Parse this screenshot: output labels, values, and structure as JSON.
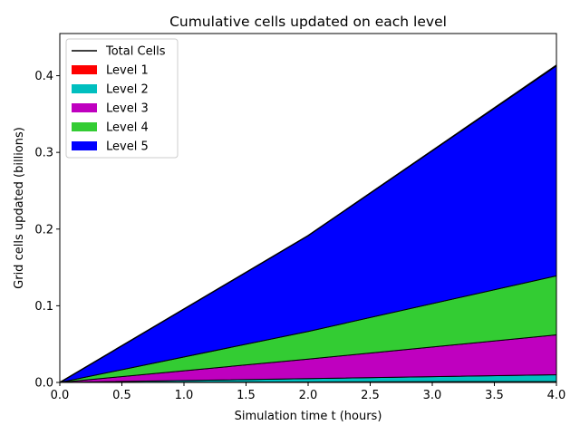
{
  "chart_data": {
    "type": "area",
    "stacked": true,
    "title": "Cumulative cells updated on each level",
    "xlabel": "Simulation time t (hours)",
    "ylabel": "Grid cells updated (billions)",
    "xlim": [
      0,
      4
    ],
    "ylim": [
      0,
      0.455
    ],
    "xticks": [
      0,
      0.5,
      1,
      1.5,
      2,
      2.5,
      3,
      3.5,
      4
    ],
    "xtick_labels": [
      "0.0",
      "0.5",
      "1.0",
      "1.5",
      "2.0",
      "2.5",
      "3.0",
      "3.5",
      "4.0"
    ],
    "yticks": [
      0,
      0.1,
      0.2,
      0.3,
      0.4
    ],
    "ytick_labels": [
      "0.0",
      "0.1",
      "0.2",
      "0.3",
      "0.4"
    ],
    "grid": false,
    "legend_position": "top-left",
    "x": [
      0,
      2,
      4
    ],
    "series": [
      {
        "name": "Level 1",
        "color": "#ff0000",
        "values": [
          0,
          0.0006,
          0.0012
        ]
      },
      {
        "name": "Level 2",
        "color": "#00bfbf",
        "values": [
          0,
          0.0044,
          0.0088
        ]
      },
      {
        "name": "Level 3",
        "color": "#bf00bf",
        "values": [
          0,
          0.0255,
          0.052
        ]
      },
      {
        "name": "Level 4",
        "color": "#33cc33",
        "values": [
          0,
          0.036,
          0.077
        ]
      },
      {
        "name": "Level 5",
        "color": "#0000ff",
        "values": [
          0,
          0.125,
          0.275
        ]
      }
    ],
    "total": {
      "name": "Total Cells",
      "color": "#000000",
      "values": [
        0,
        0.1915,
        0.413
      ]
    }
  }
}
